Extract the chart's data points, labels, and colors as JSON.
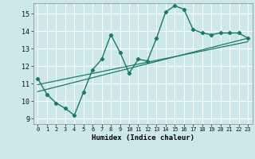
{
  "xlabel": "Humidex (Indice chaleur)",
  "bg_color": "#cce8e8",
  "grid_color": "#ffffff",
  "line_color": "#1a7a6a",
  "xlim": [
    -0.5,
    23.5
  ],
  "ylim": [
    8.7,
    15.6
  ],
  "xticks": [
    0,
    1,
    2,
    3,
    4,
    5,
    6,
    7,
    8,
    9,
    10,
    11,
    12,
    13,
    14,
    15,
    16,
    17,
    18,
    19,
    20,
    21,
    22,
    23
  ],
  "yticks": [
    9,
    10,
    11,
    12,
    13,
    14,
    15
  ],
  "line1_x": [
    0,
    1,
    2,
    3,
    4,
    5,
    6,
    7,
    8,
    9,
    10,
    11,
    12,
    13,
    14,
    15,
    16,
    17,
    18,
    19,
    20,
    21,
    22,
    23
  ],
  "line1_y": [
    11.3,
    10.4,
    9.9,
    9.6,
    9.2,
    10.5,
    11.8,
    12.4,
    13.8,
    12.8,
    11.6,
    12.4,
    12.3,
    13.6,
    15.1,
    15.45,
    15.25,
    14.1,
    13.9,
    13.8,
    13.9,
    13.9,
    13.9,
    13.6
  ],
  "line2_x": [
    0,
    23
  ],
  "line2_y": [
    10.55,
    13.6
  ],
  "line3_x": [
    0,
    23
  ],
  "line3_y": [
    10.95,
    13.4
  ]
}
